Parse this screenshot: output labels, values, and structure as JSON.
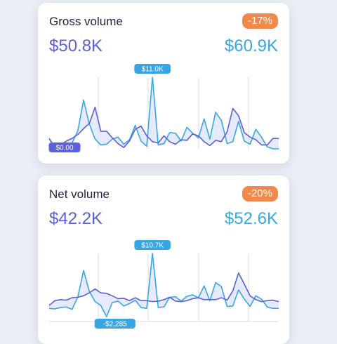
{
  "cards": [
    {
      "title": "Gross volume",
      "badge": "-17%",
      "value_current": "$50.8K",
      "value_previous": "$60.9K",
      "tooltip_peak": "$11.0K",
      "tooltip_low": "$0.00"
    },
    {
      "title": "Net volume",
      "badge": "-20%",
      "value_current": "$42.2K",
      "value_previous": "$52.6K",
      "tooltip_peak": "$10.7K",
      "tooltip_low": "-$2,285"
    }
  ],
  "colors": {
    "current": "#5b5fd8",
    "previous": "#39a6e4",
    "badge": "#f0894a",
    "fill": "#dfe6fb"
  },
  "chart_data": [
    {
      "type": "line",
      "title": "Gross volume",
      "x": [
        1,
        2,
        3,
        4,
        5,
        6,
        7,
        8,
        9,
        10,
        11,
        12,
        13,
        14,
        15,
        16,
        17,
        18,
        19,
        20,
        21,
        22,
        23,
        24,
        25,
        26,
        27,
        28,
        29,
        30,
        31,
        32,
        33,
        34,
        35,
        36,
        37,
        38,
        39,
        40,
        41
      ],
      "series": [
        {
          "values": [
            1.6,
            0.2,
            0.6,
            1.2,
            1.6,
            2.2,
            3.1,
            3.9,
            6.4,
            2.7,
            2.7,
            1.7,
            0.8,
            0.2,
            1.2,
            3.0,
            3.5,
            2.0,
            1.1,
            0.9,
            2.0,
            1.1,
            0.7,
            1.4,
            1.3,
            2.3,
            2.0,
            1.1,
            0.5,
            1.3,
            1.1,
            2.6,
            6.2,
            5.1,
            2.5,
            1.8,
            1.4,
            0.6,
            0.6,
            1.6,
            1.6
          ]
        },
        {
          "values": [
            0.6,
            0.0,
            0.0,
            0.2,
            0.9,
            2.8,
            7.5,
            3.8,
            1.5,
            0.6,
            0.7,
            1.5,
            1.8,
            0.7,
            1.4,
            3.6,
            1.2,
            0.4,
            11.0,
            0.6,
            0.8,
            2.5,
            2.4,
            1.2,
            3.3,
            2.4,
            1.7,
            4.6,
            1.5,
            5.6,
            4.4,
            0.8,
            1.1,
            4.2,
            1.2,
            0.7,
            3.0,
            1.8,
            0.3,
            0.0,
            0.0
          ]
        }
      ],
      "ylim": [
        0,
        11.0
      ]
    },
    {
      "type": "line",
      "title": "Net volume",
      "x": [
        1,
        2,
        3,
        4,
        5,
        6,
        7,
        8,
        9,
        10,
        11,
        12,
        13,
        14,
        15,
        16,
        17,
        18,
        19,
        20,
        21,
        22,
        23,
        24,
        25,
        26,
        27,
        28,
        29,
        30,
        31,
        32,
        33,
        34,
        35,
        36,
        37,
        38,
        39,
        40,
        41
      ],
      "series": [
        {
          "values": [
            0.0,
            1.0,
            1.2,
            1.1,
            1.6,
            1.7,
            2.0,
            2.6,
            3.4,
            2.6,
            2.5,
            2.0,
            1.4,
            1.5,
            1.0,
            1.6,
            1.0,
            1.0,
            0.8,
            0.9,
            1.2,
            1.7,
            0.9,
            0.8,
            1.0,
            1.4,
            1.6,
            1.2,
            1.2,
            1.2,
            1.6,
            1.1,
            3.0,
            6.7,
            4.4,
            2.0,
            1.2,
            0.8,
            1.0,
            1.1,
            0.8
          ]
        },
        {
          "values": [
            -0.6,
            -0.7,
            -0.4,
            -0.3,
            -0.8,
            1.8,
            7.2,
            2.9,
            0.8,
            0.0,
            -2.285,
            0.6,
            0.9,
            -0.1,
            0.4,
            1.1,
            -0.4,
            -0.6,
            10.7,
            -0.4,
            -0.3,
            1.7,
            1.8,
            0.9,
            1.9,
            2.2,
            1.6,
            4.0,
            1.0,
            4.7,
            3.9,
            -0.2,
            -0.1,
            3.2,
            1.3,
            -0.2,
            2.0,
            1.3,
            -0.3,
            -0.6,
            -0.6
          ]
        }
      ],
      "ylim": [
        -2.285,
        10.7
      ]
    }
  ]
}
